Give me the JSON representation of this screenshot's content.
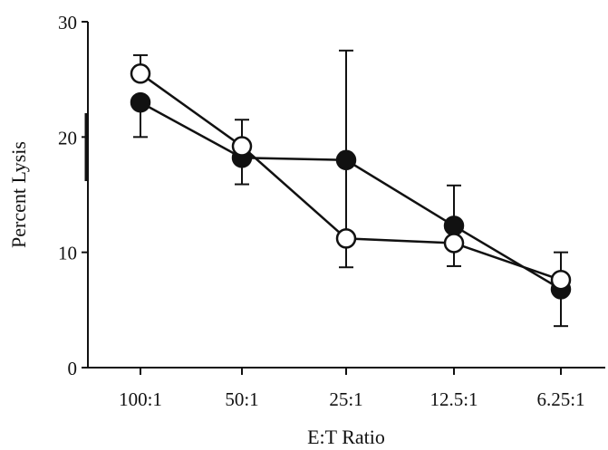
{
  "chart_data": {
    "type": "line",
    "categories": [
      "100:1",
      "50:1",
      "25:1",
      "12.5:1",
      "6.25:1"
    ],
    "xlabel": "E:T Ratio",
    "ylabel": "Percent Lysis",
    "ylim": [
      0,
      30
    ],
    "yticks": [
      0,
      10,
      20,
      30
    ],
    "grid": false,
    "series": [
      {
        "marker": "filled-circle",
        "color": "#111111",
        "values": [
          23.0,
          18.2,
          18.0,
          12.3,
          6.8
        ],
        "err_up": [
          0,
          0,
          0,
          3.5,
          0
        ],
        "err_down": [
          3.0,
          2.3,
          0,
          0,
          3.2
        ]
      },
      {
        "marker": "open-circle",
        "color": "#111111",
        "values": [
          25.5,
          19.2,
          11.2,
          10.8,
          7.6
        ],
        "err_up": [
          1.6,
          2.3,
          16.3,
          0,
          2.4
        ],
        "err_down": [
          0,
          0,
          2.5,
          2.0,
          0
        ]
      }
    ]
  }
}
